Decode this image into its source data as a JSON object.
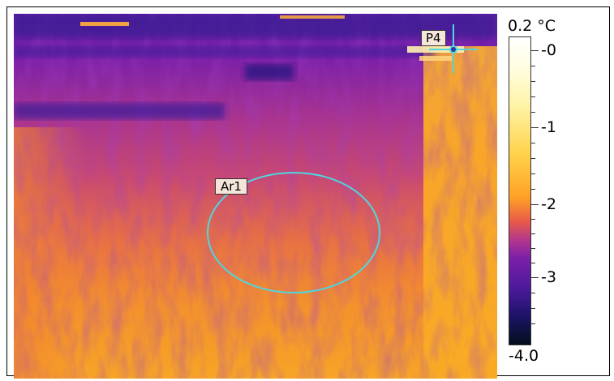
{
  "scale": {
    "max_label": "0.2 °C",
    "min_label": "-4.0",
    "tick_labels": [
      "-0",
      "-1",
      "-2",
      "-3"
    ]
  },
  "markers": {
    "point_label": "P4",
    "area_label": "Ar1"
  },
  "colors": {
    "marker_cyan": "#4fd6e0",
    "label_bg": "#f6e6da",
    "palette": "iron"
  }
}
